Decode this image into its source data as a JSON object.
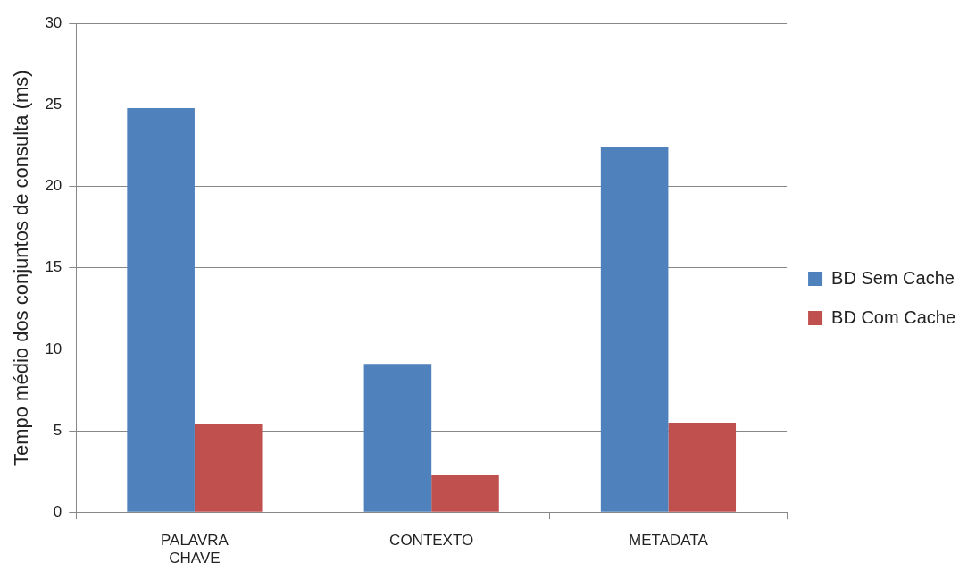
{
  "chart_data": {
    "type": "bar",
    "ylabel": "Tempo médio dos conjuntos de consulta (ms)",
    "categories": [
      "PALAVRA CHAVE",
      "CONTEXTO",
      "METADATA"
    ],
    "series": [
      {
        "name": "BD Sem Cache",
        "color": "#4f81bd",
        "values": [
          24.8,
          9.1,
          22.4
        ]
      },
      {
        "name": "BD Com Cache",
        "color": "#c0504d",
        "values": [
          5.4,
          2.3,
          5.5
        ]
      }
    ],
    "ylim": [
      0,
      30
    ],
    "yticks": [
      0,
      5,
      10,
      15,
      20,
      25,
      30
    ],
    "grid": "y",
    "legend": "right"
  }
}
